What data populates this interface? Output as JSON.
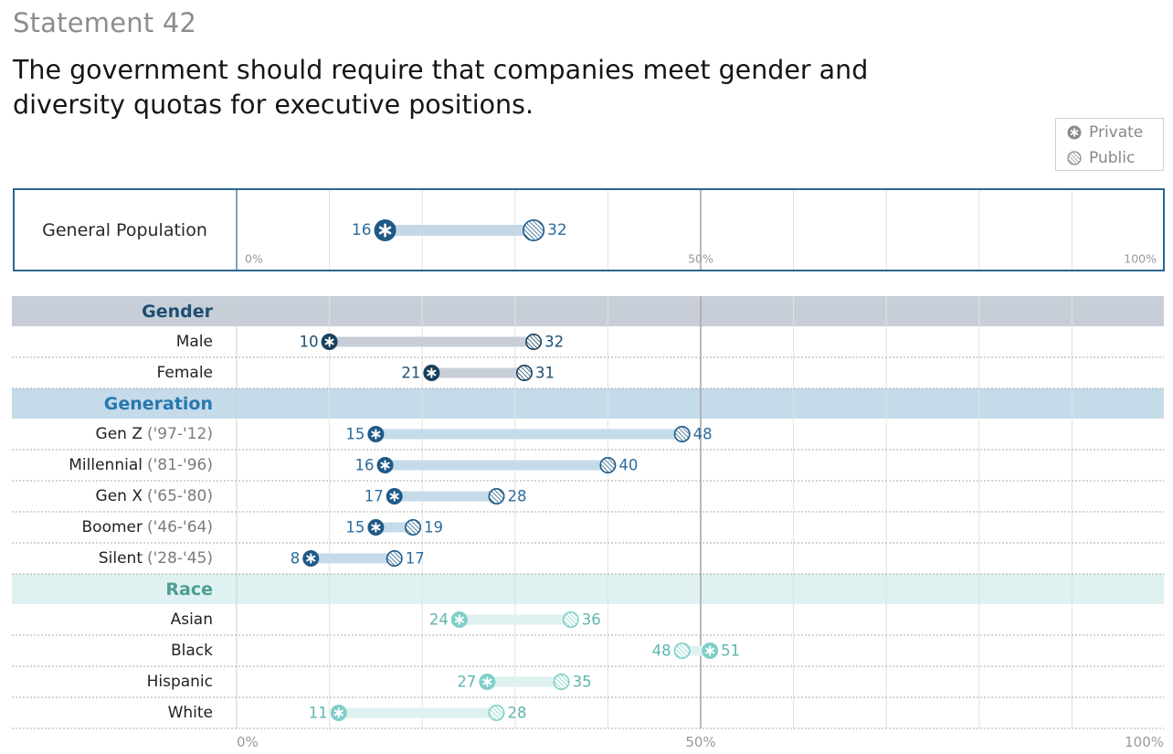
{
  "header": {
    "statement": "Statement 42",
    "question": "The government should require that companies meet gender and diversity quotas for executive positions."
  },
  "legend": [
    {
      "label": "Private",
      "icon": "star-circle-icon"
    },
    {
      "label": "Public",
      "icon": "hatched-circle-icon"
    }
  ],
  "colors": {
    "general": "#1f5a87",
    "gender": "#183f5d",
    "generation": "#1f5a87",
    "race": "#7fcfc9",
    "gender_band": "#c8ced8",
    "generation_band": "#c5dbea",
    "race_band": "#dff1f0",
    "gender_title": "#1d4f74",
    "generation_title": "#2878b0",
    "race_title": "#4d9e93"
  },
  "chart_data": {
    "type": "dumbbell",
    "xlim": [
      0,
      100
    ],
    "tick_labels": [
      "0%",
      "50%",
      "100%"
    ],
    "grid": true,
    "legend_position": "top-right",
    "series": [
      "Private",
      "Public"
    ],
    "general": {
      "label": "General Population",
      "private": 16,
      "public": 32
    },
    "groups": [
      {
        "title": "Gender",
        "theme": "gender",
        "rows": [
          {
            "label": "Male",
            "years": "",
            "private": 10,
            "public": 32
          },
          {
            "label": "Female",
            "years": "",
            "private": 21,
            "public": 31
          }
        ]
      },
      {
        "title": "Generation",
        "theme": "generation",
        "rows": [
          {
            "label": "Gen Z",
            "years": "('97-'12)",
            "private": 15,
            "public": 48
          },
          {
            "label": "Millennial",
            "years": "('81-'96)",
            "private": 16,
            "public": 40
          },
          {
            "label": "Gen X",
            "years": "('65-'80)",
            "private": 17,
            "public": 28
          },
          {
            "label": "Boomer",
            "years": "('46-'64)",
            "private": 15,
            "public": 19
          },
          {
            "label": "Silent",
            "years": "('28-'45)",
            "private": 8,
            "public": 17
          }
        ]
      },
      {
        "title": "Race",
        "theme": "race",
        "rows": [
          {
            "label": "Asian",
            "years": "",
            "private": 24,
            "public": 36
          },
          {
            "label": "Black",
            "years": "",
            "private": 51,
            "public": 48
          },
          {
            "label": "Hispanic",
            "years": "",
            "private": 27,
            "public": 35
          },
          {
            "label": "White",
            "years": "",
            "private": 11,
            "public": 28
          }
        ]
      }
    ]
  }
}
